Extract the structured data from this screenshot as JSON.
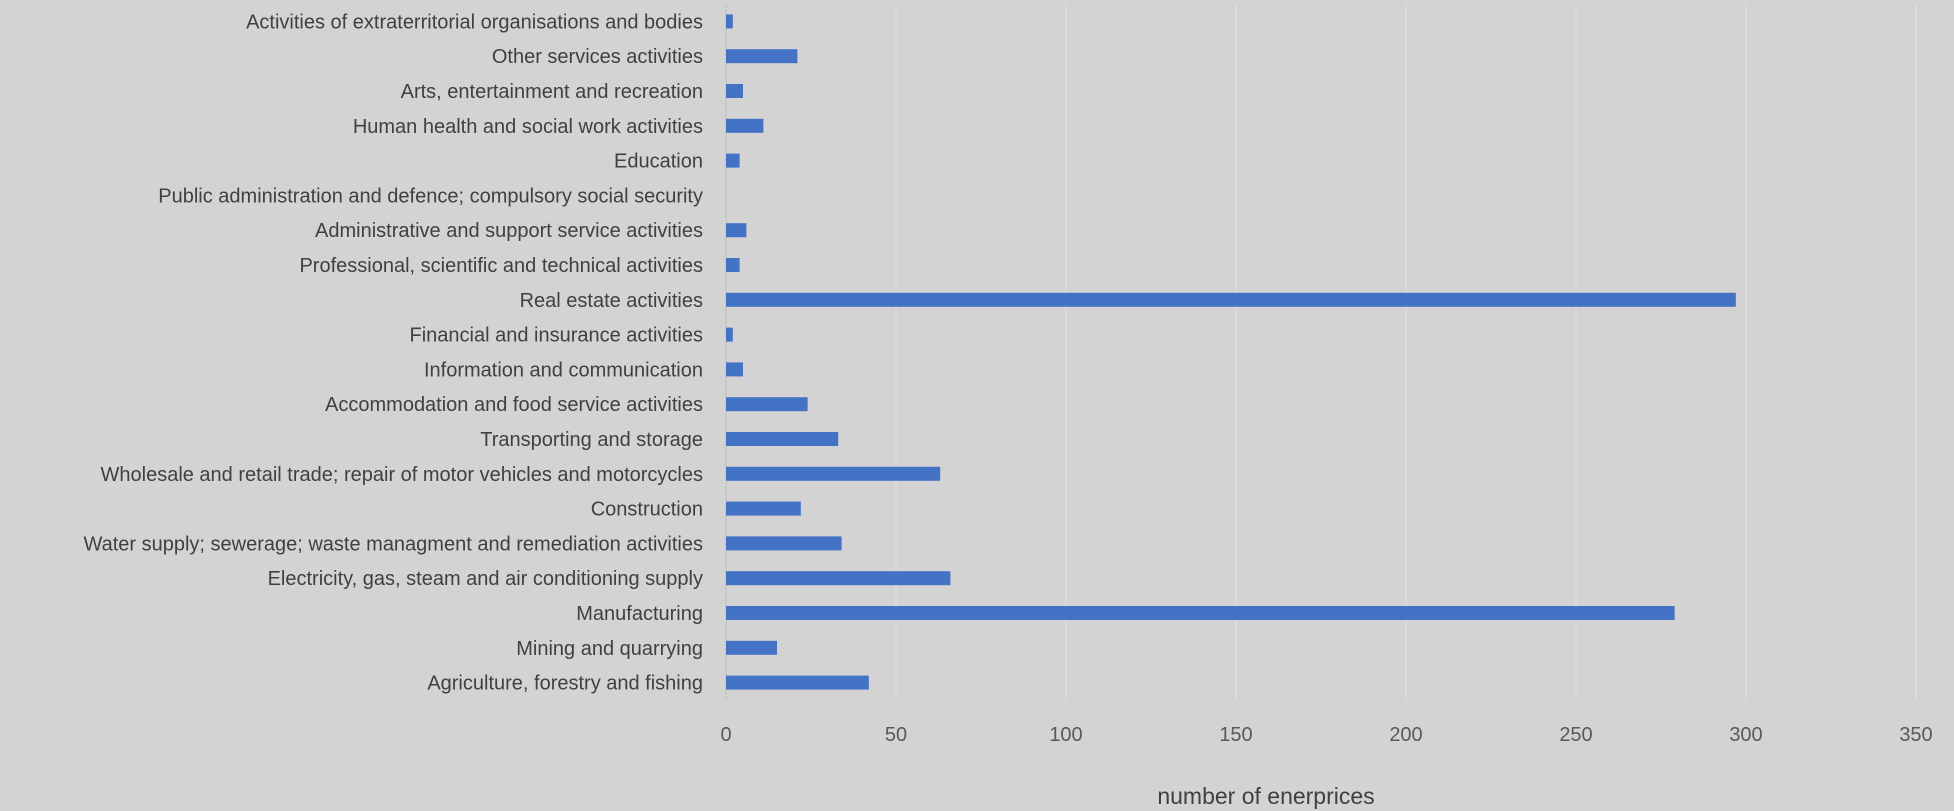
{
  "chart_data": {
    "type": "bar",
    "orientation": "horizontal",
    "title": "",
    "xlabel": "number of enerprices",
    "ylabel": "",
    "xlim": [
      0,
      350
    ],
    "x_ticks": [
      0,
      50,
      100,
      150,
      200,
      250,
      300,
      350
    ],
    "grid": "vertical",
    "legend": "none",
    "bar_color": "#4472c4",
    "background_color": "#d3d3d3",
    "categories": [
      "Agriculture, forestry and fishing",
      "Mining and quarrying",
      "Manufacturing",
      "Electricity, gas, steam and air conditioning supply",
      "Water supply; sewerage; waste managment and remediation activities",
      "Construction",
      "Wholesale and retail trade; repair of motor vehicles and motorcycles",
      "Transporting and storage",
      "Accommodation and food service activities",
      "Information and communication",
      "Financial and insurance activities",
      "Real estate activities",
      "Professional, scientific and technical activities",
      "Administrative and support service activities",
      "Public administration and defence; compulsory social security",
      "Education",
      "Human health and social work activities",
      "Arts, entertainment and recreation",
      "Other services activities",
      "Activities of extraterritorial organisations and bodies"
    ],
    "values": [
      42,
      15,
      279,
      66,
      34,
      22,
      63,
      33,
      24,
      5,
      2,
      297,
      4,
      6,
      0,
      4,
      11,
      5,
      21,
      2
    ]
  }
}
